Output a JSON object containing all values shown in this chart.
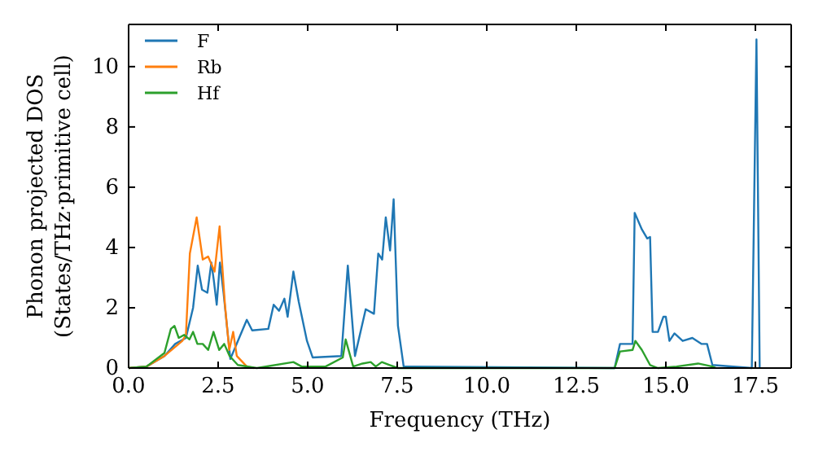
{
  "chart_data": {
    "type": "line",
    "xlabel": "Frequency (THz)",
    "ylabel": "Phonon projected DOS\n(States/THz·primitive cell)",
    "xlim": [
      0,
      18.5
    ],
    "ylim": [
      0,
      11.4
    ],
    "xticks": [
      {
        "value": 0,
        "label": "0.0"
      },
      {
        "value": 2.5,
        "label": "2.5"
      },
      {
        "value": 5,
        "label": "5.0"
      },
      {
        "value": 7.5,
        "label": "7.5"
      },
      {
        "value": 10,
        "label": "10.0"
      },
      {
        "value": 12.5,
        "label": "12.5"
      },
      {
        "value": 15,
        "label": "15.0"
      },
      {
        "value": 17.5,
        "label": "17.5"
      }
    ],
    "yticks": [
      0,
      2,
      4,
      6,
      8,
      10
    ],
    "legend": "top left",
    "grid": false,
    "series": [
      {
        "name": "F",
        "color": "#1f77b4",
        "x": [
          0,
          0.5,
          1.0,
          1.3,
          1.6,
          1.8,
          1.93,
          2.05,
          2.2,
          2.31,
          2.38,
          2.46,
          2.55,
          2.65,
          2.84,
          3.07,
          3.3,
          3.45,
          3.9,
          4.05,
          4.2,
          4.35,
          4.44,
          4.6,
          4.75,
          4.98,
          5.14,
          5.94,
          6.12,
          6.32,
          6.62,
          6.85,
          6.97,
          7.08,
          7.18,
          7.3,
          7.4,
          7.52,
          7.68,
          13.57,
          13.72,
          14.07,
          14.13,
          14.33,
          14.48,
          14.56,
          14.63,
          14.78,
          14.93,
          15.0,
          15.1,
          15.24,
          15.47,
          15.74,
          16.0,
          16.15,
          16.3,
          17.4,
          17.53,
          17.62
        ],
        "values": [
          0,
          0.05,
          0.4,
          0.8,
          1.0,
          2.0,
          3.4,
          2.6,
          2.5,
          3.5,
          2.9,
          2.1,
          3.5,
          2.5,
          0.3,
          0.95,
          1.6,
          1.25,
          1.3,
          2.1,
          1.9,
          2.3,
          1.7,
          3.2,
          2.2,
          0.9,
          0.35,
          0.4,
          3.4,
          0.4,
          1.95,
          1.8,
          3.8,
          3.6,
          5.0,
          3.9,
          5.6,
          1.4,
          0.05,
          0,
          0.8,
          0.8,
          5.15,
          4.6,
          4.3,
          4.35,
          1.2,
          1.2,
          1.7,
          1.7,
          0.9,
          1.15,
          0.9,
          1.0,
          0.8,
          0.8,
          0.1,
          0,
          10.9,
          0
        ]
      },
      {
        "name": "Rb",
        "color": "#ff7f0e",
        "x": [
          0,
          0.5,
          1.0,
          1.5,
          1.6,
          1.71,
          1.9,
          2.07,
          2.22,
          2.4,
          2.54,
          2.69,
          2.81,
          2.92,
          3.02,
          3.3,
          3.5
        ],
        "values": [
          0,
          0.05,
          0.4,
          0.9,
          1.1,
          3.8,
          5.0,
          3.6,
          3.7,
          3.2,
          4.7,
          2.1,
          0.6,
          1.2,
          0.4,
          0.05,
          0
        ]
      },
      {
        "name": "Hf",
        "color": "#2ca02c",
        "x": [
          0,
          0.5,
          1.0,
          1.18,
          1.28,
          1.4,
          1.55,
          1.7,
          1.8,
          1.92,
          2.07,
          2.22,
          2.37,
          2.53,
          2.67,
          2.82,
          3.05,
          3.58,
          4.6,
          4.83,
          5.5,
          5.98,
          6.06,
          6.27,
          6.53,
          6.76,
          6.9,
          7.07,
          7.29,
          7.52,
          13.57,
          13.72,
          14.07,
          14.15,
          14.33,
          14.56,
          14.78,
          15.3,
          15.9,
          16.3,
          16.4
        ],
        "values": [
          0,
          0.05,
          0.5,
          1.3,
          1.4,
          1.0,
          1.1,
          0.95,
          1.2,
          0.8,
          0.8,
          0.6,
          1.2,
          0.6,
          0.8,
          0.4,
          0.1,
          0,
          0.2,
          0.05,
          0.05,
          0.35,
          0.95,
          0.05,
          0.15,
          0.2,
          0.05,
          0.2,
          0.1,
          0,
          0,
          0.55,
          0.6,
          0.9,
          0.6,
          0.1,
          0,
          0.05,
          0.15,
          0.05,
          0
        ]
      }
    ]
  }
}
